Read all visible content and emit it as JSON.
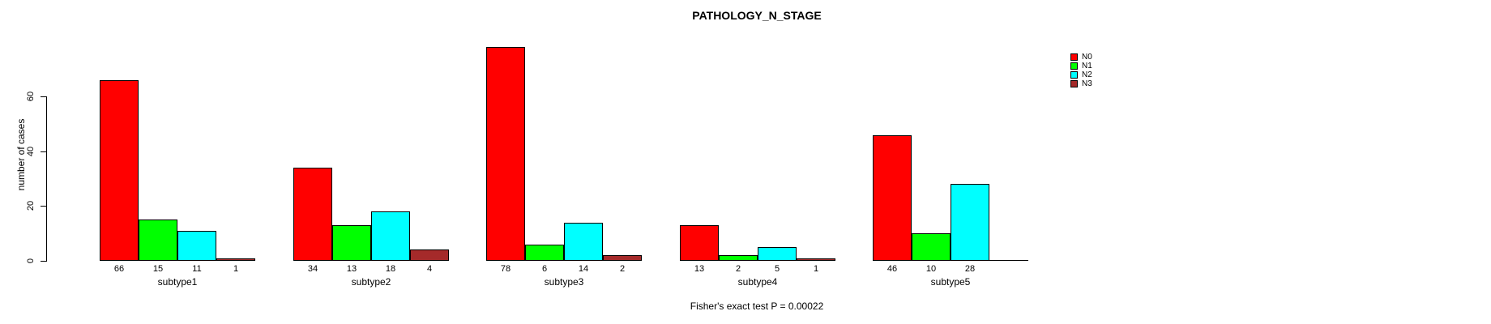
{
  "title": "PATHOLOGY_N_STAGE",
  "y_axis": {
    "label": "number of cases",
    "ticks": [
      0,
      20,
      40,
      60
    ]
  },
  "annotation": "Fisher's exact test P = 0.00022",
  "legend": {
    "position": "top-right",
    "items": [
      {
        "label": "N0",
        "color": "#FF0000"
      },
      {
        "label": "N1",
        "color": "#00FF00"
      },
      {
        "label": "N2",
        "color": "#00FFFF"
      },
      {
        "label": "N3",
        "color": "#A52A2A"
      }
    ]
  },
  "chart_data": {
    "type": "bar",
    "title": "PATHOLOGY_N_STAGE",
    "xlabel": "",
    "ylabel": "number of cases",
    "categories": [
      "subtype1",
      "subtype2",
      "subtype3",
      "subtype4",
      "subtype5"
    ],
    "series": [
      {
        "name": "N0",
        "color": "#FF0000",
        "values": [
          66,
          34,
          78,
          13,
          46
        ]
      },
      {
        "name": "N1",
        "color": "#00FF00",
        "values": [
          15,
          13,
          6,
          2,
          10
        ]
      },
      {
        "name": "N2",
        "color": "#00FFFF",
        "values": [
          11,
          18,
          14,
          5,
          28
        ]
      },
      {
        "name": "N3",
        "color": "#A52A2A",
        "values": [
          1,
          4,
          2,
          1,
          0
        ]
      }
    ],
    "bar_value_labels": true,
    "hide_label_when_zero": true,
    "ylim": [
      0,
      79
    ],
    "yticks": [
      0,
      20,
      40,
      60
    ],
    "grid": false,
    "legend_position": "top-right",
    "annotation": "Fisher's exact test P = 0.00022"
  }
}
